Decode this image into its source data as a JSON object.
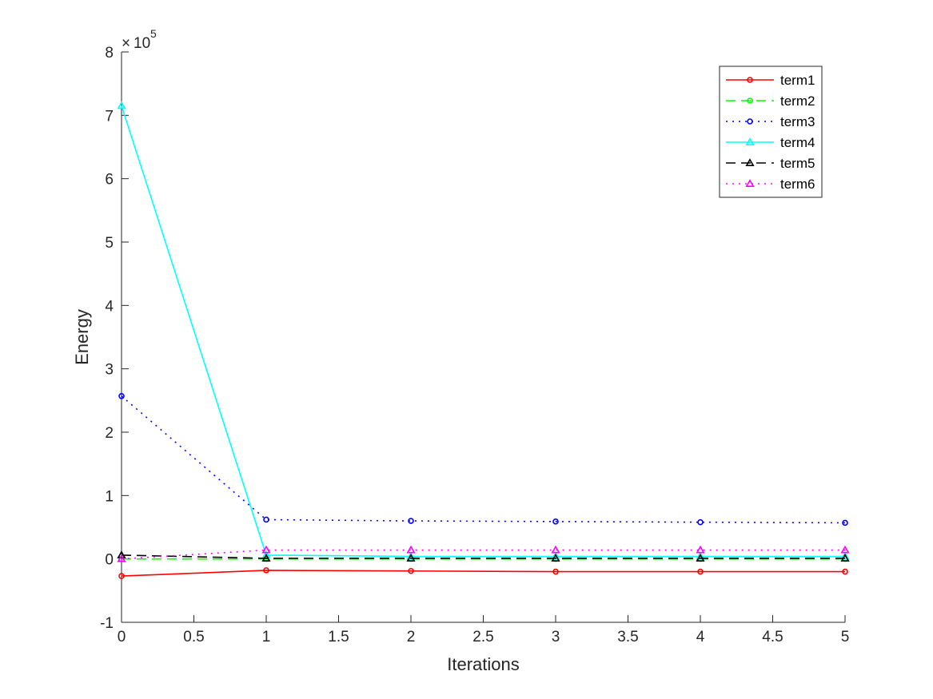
{
  "chart_data": {
    "type": "line",
    "title": "",
    "xlabel": "Iterations",
    "ylabel": "Energy",
    "y_multiplier": {
      "base": "10",
      "exponent": "5",
      "prefix": "×"
    },
    "xlim": [
      0,
      5
    ],
    "ylim": [
      -1,
      8
    ],
    "x_ticks": [
      "0",
      "0.5",
      "1",
      "1.5",
      "2",
      "2.5",
      "3",
      "3.5",
      "4",
      "4.5",
      "5"
    ],
    "y_ticks": [
      "-1",
      "0",
      "1",
      "2",
      "3",
      "4",
      "5",
      "6",
      "7",
      "8"
    ],
    "grid": false,
    "legend_position": "top-right",
    "x": [
      0,
      1,
      2,
      3,
      4,
      5
    ],
    "series": [
      {
        "name": "term1",
        "color": "#ff0000",
        "line_style": "solid",
        "marker": "circle",
        "values": [
          -0.27,
          -0.18,
          -0.19,
          -0.2,
          -0.2,
          -0.2
        ]
      },
      {
        "name": "term2",
        "color": "#00ff00",
        "line_style": "dashed",
        "marker": "circle",
        "values": [
          0.0,
          0.0,
          0.0,
          0.0,
          0.0,
          0.0
        ]
      },
      {
        "name": "term3",
        "color": "#0000ff",
        "line_style": "dotted",
        "marker": "circle",
        "values": [
          2.57,
          0.62,
          0.6,
          0.59,
          0.58,
          0.57
        ]
      },
      {
        "name": "term4",
        "color": "#00ffff",
        "line_style": "solid",
        "marker": "triangle",
        "values": [
          7.15,
          0.06,
          0.04,
          0.04,
          0.04,
          0.04
        ]
      },
      {
        "name": "term5",
        "color": "#000000",
        "line_style": "dashed",
        "marker": "triangle",
        "values": [
          0.06,
          0.01,
          0.01,
          0.01,
          0.01,
          0.01
        ]
      },
      {
        "name": "term6",
        "color": "#ff00ff",
        "line_style": "dotted",
        "marker": "triangle",
        "values": [
          0.0,
          0.14,
          0.14,
          0.14,
          0.14,
          0.14
        ]
      }
    ]
  }
}
